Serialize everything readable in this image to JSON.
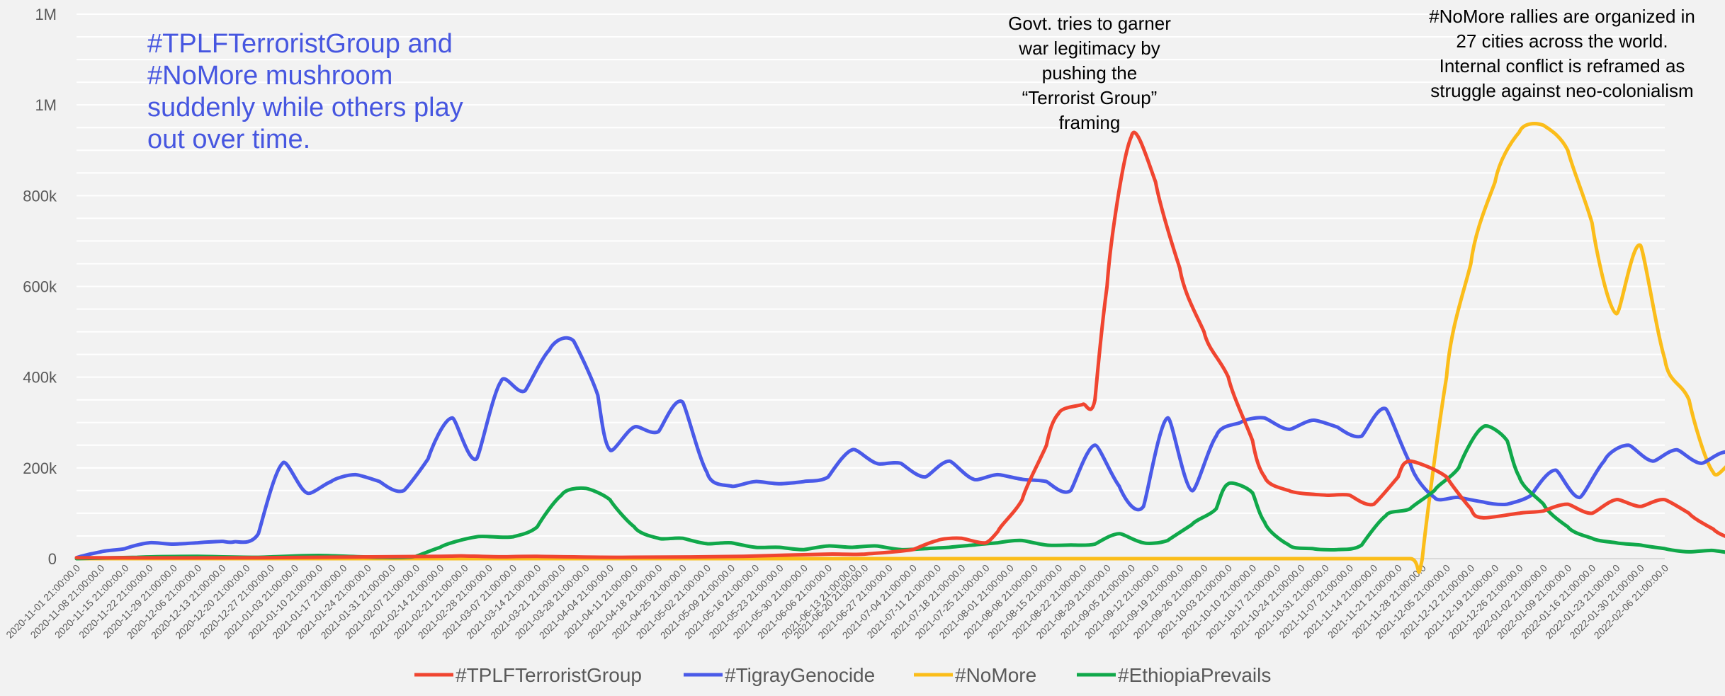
{
  "chart_data": {
    "type": "line",
    "title": "",
    "xlabel": "",
    "ylabel": "",
    "ylim": [
      0,
      1200000
    ],
    "y_tick_labels": [
      "0",
      "200k",
      "400k",
      "600k",
      "800k",
      "1M",
      "1M"
    ],
    "grid": "horizontal",
    "legend_position": "bottom",
    "x": [
      "2020-11-01 21:00:00.0",
      "2020-11-08 21:00:00.0",
      "2020-11-15 21:00:00.0",
      "2020-11-22 21:00:00.0",
      "2020-11-29 21:00:00.0",
      "2020-12-06 21:00:00.0",
      "2020-12-13 21:00:00.0",
      "2020-12-20 21:00:00.0",
      "2020-12-27 21:00:00.0",
      "2021-01-03 21:00:00.0",
      "2021-01-10 21:00:00.0",
      "2021-01-17 21:00:00.0",
      "2021-01-24 21:00:00.0",
      "2021-01-31 21:00:00.0",
      "2021-02-07 21:00:00.0",
      "2021-02-14 21:00:00.0",
      "2021-02-21 21:00:00.0",
      "2021-02-28 21:00:00.0",
      "2021-03-07 21:00:00.0",
      "2021-03-14 21:00:00.0",
      "2021-03-21 21:00:00.0",
      "2021-03-28 21:00:00.0",
      "2021-04-04 21:00:00.0",
      "2021-04-11 21:00:00.0",
      "2021-04-18 21:00:00.0",
      "2021-04-25 21:00:00.0",
      "2021-05-02 21:00:00.0",
      "2021-05-09 21:00:00.0",
      "2021-05-16 21:00:00.0",
      "2021-05-23 21:00:00.0",
      "2021-05-30 21:00:00.0",
      "2021-06-06 21:00:00.0",
      "2021-06-13 21:00:00.0",
      "2021-06-20 21:00:00.0",
      "2021-06-27 21:00:00.0",
      "2021-07-04 21:00:00.0",
      "2021-07-11 21:00:00.0",
      "2021-07-18 21:00:00.0",
      "2021-07-25 21:00:00.0",
      "2021-08-01 21:00:00.0",
      "2021-08-08 21:00:00.0",
      "2021-08-15 21:00:00.0",
      "2021-08-22 21:00:00.0",
      "2021-08-29 21:00:00.0",
      "2021-09-05 21:00:00.0",
      "2021-09-12 21:00:00.0",
      "2021-09-19 21:00:00.0",
      "2021-09-26 21:00:00.0",
      "2021-10-03 21:00:00.0",
      "2021-10-10 21:00:00.0",
      "2021-10-17 21:00:00.0",
      "2021-10-24 21:00:00.0",
      "2021-10-31 21:00:00.0",
      "2021-11-07 21:00:00.0",
      "2021-11-14 21:00:00.0",
      "2021-11-21 21:00:00.0",
      "2021-11-28 21:00:00.0",
      "2021-12-05 21:00:00.0",
      "2021-12-12 21:00:00.0",
      "2021-12-19 21:00:00.0",
      "2021-12-26 21:00:00.0",
      "2022-01-02 21:00:00.0",
      "2022-01-09 21:00:00.0",
      "2022-01-16 21:00:00.0",
      "2022-01-23 21:00:00.0",
      "2022-01-30 21:00:00.0",
      "2022-02-06 21:00:00.0"
    ],
    "x_tick_positions": [
      0,
      4,
      8,
      12,
      16,
      20,
      24,
      28,
      32,
      36,
      40,
      44,
      48,
      52,
      56,
      60,
      64,
      68,
      72,
      76,
      80,
      84,
      88,
      92,
      96,
      100,
      104,
      108,
      112,
      116,
      120,
      124,
      128,
      130,
      134,
      138,
      142,
      146,
      150,
      154,
      158,
      162,
      166,
      170,
      174,
      178,
      182,
      186,
      190,
      194,
      198,
      202,
      206,
      210,
      214,
      218,
      222,
      226,
      230,
      234,
      238,
      242,
      246,
      250,
      254,
      258,
      262
    ],
    "x_num_points": 263,
    "series": [
      {
        "name": "#TPLFTerroristGroup",
        "color": "#f04530",
        "points": [
          [
            0,
            2000
          ],
          [
            30,
            2000
          ],
          [
            60,
            5000
          ],
          [
            64,
            6000
          ],
          [
            70,
            4000
          ],
          [
            76,
            5000
          ],
          [
            90,
            3000
          ],
          [
            110,
            5000
          ],
          [
            124,
            10000
          ],
          [
            130,
            10000
          ],
          [
            138,
            20000
          ],
          [
            142,
            40000
          ],
          [
            146,
            45000
          ],
          [
            150,
            35000
          ],
          [
            152,
            60000
          ],
          [
            156,
            130000
          ],
          [
            160,
            250000
          ],
          [
            162,
            320000
          ],
          [
            166,
            340000
          ],
          [
            168,
            350000
          ],
          [
            170,
            600000
          ],
          [
            174,
            930000
          ],
          [
            178,
            830000
          ],
          [
            182,
            640000
          ],
          [
            186,
            500000
          ],
          [
            190,
            400000
          ],
          [
            194,
            260000
          ],
          [
            196,
            180000
          ],
          [
            200,
            150000
          ],
          [
            206,
            140000
          ],
          [
            210,
            140000
          ],
          [
            214,
            120000
          ],
          [
            218,
            180000
          ],
          [
            220,
            215000
          ],
          [
            226,
            180000
          ],
          [
            230,
            110000
          ],
          [
            232,
            90000
          ],
          [
            238,
            100000
          ],
          [
            242,
            105000
          ],
          [
            246,
            120000
          ],
          [
            250,
            100000
          ],
          [
            254,
            130000
          ],
          [
            258,
            115000
          ],
          [
            262,
            130000
          ],
          [
            266,
            100000
          ],
          [
            270,
            65000
          ],
          [
            274,
            40000
          ],
          [
            278,
            35000
          ],
          [
            282,
            40000
          ],
          [
            286,
            45000
          ],
          [
            290,
            25000
          ],
          [
            294,
            25000
          ],
          [
            298,
            28000
          ],
          [
            300,
            30000
          ],
          [
            303,
            22000
          ],
          [
            306,
            12000
          ]
        ]
      },
      {
        "name": "#TigrayGenocide",
        "color": "#4a5ae8",
        "points": [
          [
            0,
            2000
          ],
          [
            4,
            15000
          ],
          [
            8,
            22000
          ],
          [
            12,
            35000
          ],
          [
            16,
            32000
          ],
          [
            20,
            35000
          ],
          [
            24,
            38000
          ],
          [
            26,
            37000
          ],
          [
            30,
            55000
          ],
          [
            34,
            210000
          ],
          [
            38,
            145000
          ],
          [
            42,
            170000
          ],
          [
            46,
            185000
          ],
          [
            50,
            170000
          ],
          [
            54,
            150000
          ],
          [
            58,
            220000
          ],
          [
            62,
            310000
          ],
          [
            66,
            220000
          ],
          [
            70,
            390000
          ],
          [
            74,
            370000
          ],
          [
            78,
            460000
          ],
          [
            82,
            480000
          ],
          [
            86,
            360000
          ],
          [
            88,
            240000
          ],
          [
            92,
            290000
          ],
          [
            96,
            280000
          ],
          [
            100,
            345000
          ],
          [
            104,
            190000
          ],
          [
            108,
            160000
          ],
          [
            112,
            170000
          ],
          [
            116,
            165000
          ],
          [
            120,
            170000
          ],
          [
            124,
            180000
          ],
          [
            128,
            240000
          ],
          [
            132,
            210000
          ],
          [
            136,
            210000
          ],
          [
            140,
            180000
          ],
          [
            144,
            215000
          ],
          [
            148,
            175000
          ],
          [
            152,
            185000
          ],
          [
            156,
            175000
          ],
          [
            160,
            170000
          ],
          [
            164,
            150000
          ],
          [
            168,
            250000
          ],
          [
            172,
            160000
          ],
          [
            176,
            115000
          ],
          [
            180,
            310000
          ],
          [
            184,
            150000
          ],
          [
            188,
            270000
          ],
          [
            192,
            300000
          ],
          [
            196,
            310000
          ],
          [
            200,
            285000
          ],
          [
            204,
            305000
          ],
          [
            208,
            290000
          ],
          [
            212,
            270000
          ],
          [
            216,
            330000
          ],
          [
            220,
            210000
          ],
          [
            224,
            135000
          ],
          [
            228,
            135000
          ],
          [
            232,
            125000
          ],
          [
            236,
            120000
          ],
          [
            240,
            140000
          ],
          [
            244,
            195000
          ],
          [
            248,
            135000
          ],
          [
            252,
            215000
          ],
          [
            256,
            250000
          ],
          [
            260,
            215000
          ],
          [
            264,
            240000
          ],
          [
            268,
            210000
          ],
          [
            272,
            235000
          ],
          [
            276,
            215000
          ],
          [
            280,
            340000
          ],
          [
            284,
            225000
          ]
        ]
      },
      {
        "name": "#NoMore",
        "color": "#fbbd1a",
        "points": [
          [
            0,
            0
          ],
          [
            40,
            0
          ],
          [
            80,
            0
          ],
          [
            120,
            0
          ],
          [
            160,
            0
          ],
          [
            200,
            0
          ],
          [
            220,
            0
          ],
          [
            222,
            0
          ],
          [
            226,
            400000
          ],
          [
            230,
            650000
          ],
          [
            234,
            830000
          ],
          [
            238,
            940000
          ],
          [
            242,
            955000
          ],
          [
            246,
            900000
          ],
          [
            250,
            740000
          ],
          [
            254,
            540000
          ],
          [
            258,
            690000
          ],
          [
            262,
            440000
          ],
          [
            266,
            350000
          ],
          [
            270,
            190000
          ],
          [
            274,
            215000
          ],
          [
            278,
            130000
          ],
          [
            282,
            125000
          ],
          [
            286,
            110000
          ],
          [
            288,
            30000
          ]
        ]
      },
      {
        "name": "#EthiopiaPrevails",
        "color": "#10a84a",
        "points": [
          [
            0,
            0
          ],
          [
            10,
            3000
          ],
          [
            20,
            5000
          ],
          [
            30,
            3000
          ],
          [
            40,
            7000
          ],
          [
            50,
            3000
          ],
          [
            56,
            5000
          ],
          [
            60,
            25000
          ],
          [
            66,
            48000
          ],
          [
            72,
            48000
          ],
          [
            76,
            70000
          ],
          [
            80,
            140000
          ],
          [
            84,
            155000
          ],
          [
            88,
            130000
          ],
          [
            92,
            70000
          ],
          [
            96,
            45000
          ],
          [
            100,
            45000
          ],
          [
            104,
            33000
          ],
          [
            108,
            35000
          ],
          [
            112,
            25000
          ],
          [
            116,
            25000
          ],
          [
            120,
            20000
          ],
          [
            124,
            28000
          ],
          [
            128,
            25000
          ],
          [
            132,
            28000
          ],
          [
            136,
            20000
          ],
          [
            140,
            22000
          ],
          [
            144,
            25000
          ],
          [
            148,
            30000
          ],
          [
            152,
            35000
          ],
          [
            156,
            40000
          ],
          [
            160,
            30000
          ],
          [
            164,
            30000
          ],
          [
            168,
            32000
          ],
          [
            172,
            55000
          ],
          [
            176,
            35000
          ],
          [
            180,
            40000
          ],
          [
            184,
            75000
          ],
          [
            188,
            110000
          ],
          [
            190,
            165000
          ],
          [
            194,
            145000
          ],
          [
            196,
            80000
          ],
          [
            200,
            30000
          ],
          [
            204,
            22000
          ],
          [
            208,
            20000
          ],
          [
            212,
            30000
          ],
          [
            216,
            95000
          ],
          [
            220,
            110000
          ],
          [
            224,
            150000
          ],
          [
            228,
            200000
          ],
          [
            232,
            290000
          ],
          [
            236,
            260000
          ],
          [
            238,
            180000
          ],
          [
            242,
            120000
          ],
          [
            246,
            70000
          ],
          [
            250,
            45000
          ],
          [
            254,
            35000
          ],
          [
            258,
            30000
          ],
          [
            262,
            22000
          ],
          [
            266,
            15000
          ],
          [
            270,
            18000
          ],
          [
            274,
            10000
          ]
        ]
      }
    ],
    "annotations": [
      {
        "id": "govt",
        "lines": [
          "Govt. tries to garner",
          "war legitimacy by",
          "pushing the",
          "“Terrorist Group”",
          "framing"
        ]
      },
      {
        "id": "nomore",
        "lines": [
          "#NoMore rallies are organized in",
          "27 cities across the world.",
          "Internal conflict is reframed as",
          "struggle against neo-colonialism"
        ]
      }
    ],
    "note": [
      "#TPLFTerroristGroup and",
      "#NoMore mushroom",
      "suddenly while others play",
      "out over time."
    ]
  }
}
